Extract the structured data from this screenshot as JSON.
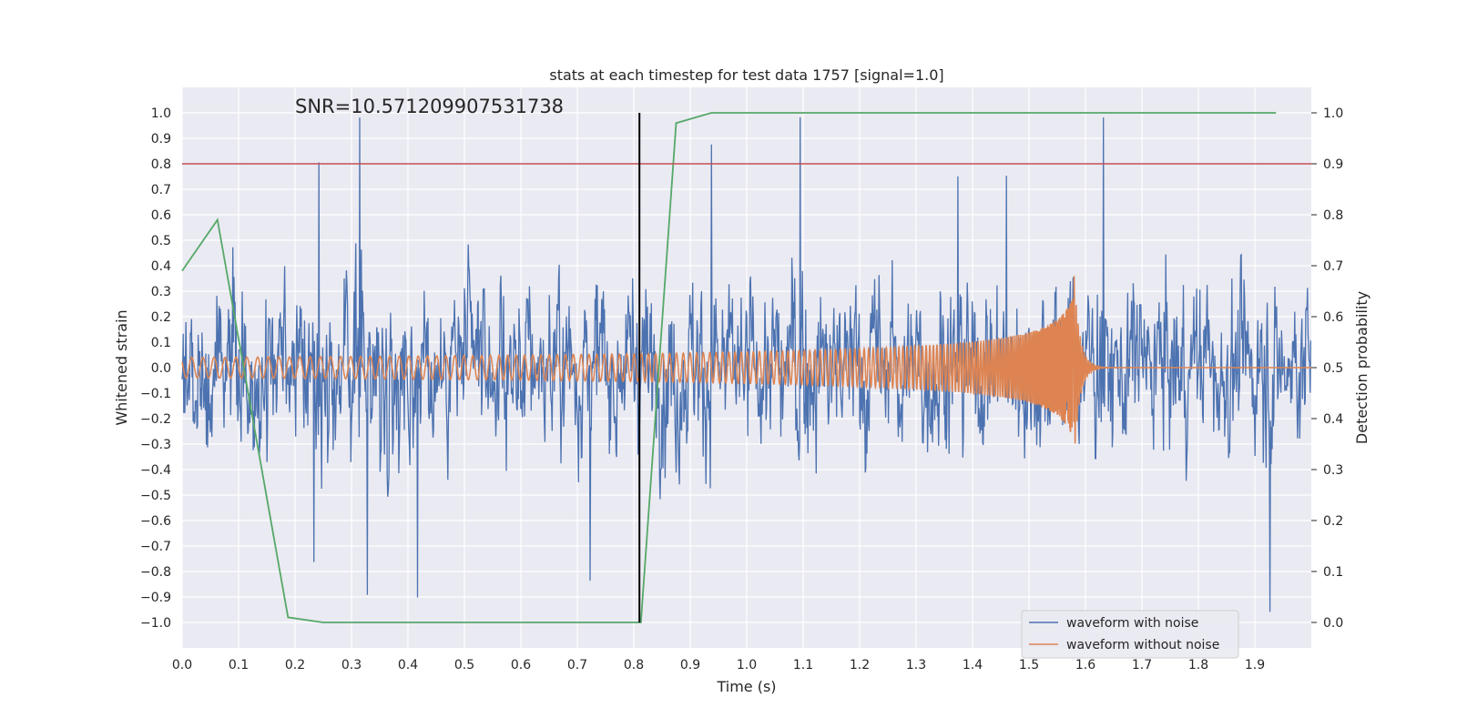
{
  "chart_data": {
    "type": "line",
    "title": "stats at each timestep for test data 1757 [signal=1.0]",
    "xlabel": "Time (s)",
    "ylabel": "Whitened strain",
    "ylabel_right": "Detection probability",
    "annotation": "SNR=10.571209907531738",
    "xlim": [
      0.0,
      2.0
    ],
    "ylim": [
      -1.1,
      1.1
    ],
    "ylim_right": [
      -0.05,
      1.05
    ],
    "x_ticks": [
      "0.0",
      "0.1",
      "0.2",
      "0.3",
      "0.4",
      "0.5",
      "0.6",
      "0.7",
      "0.8",
      "0.9",
      "1.0",
      "1.1",
      "1.2",
      "1.3",
      "1.4",
      "1.5",
      "1.6",
      "1.7",
      "1.8",
      "1.9"
    ],
    "y_ticks": [
      "1.0",
      "0.9",
      "0.8",
      "0.7",
      "0.6",
      "0.5",
      "0.4",
      "0.3",
      "0.2",
      "0.1",
      "0.0",
      "−0.1",
      "−0.2",
      "−0.3",
      "−0.4",
      "−0.5",
      "−0.6",
      "−0.7",
      "−0.8",
      "−0.9",
      "−1.0"
    ],
    "y_ticks_right": [
      "1.0",
      "0.9",
      "0.8",
      "0.7",
      "0.6",
      "0.5",
      "0.4",
      "0.3",
      "0.2",
      "0.1",
      "0.0"
    ],
    "threshold": 0.8,
    "event_time": 0.81,
    "legend": {
      "position": "lower-right",
      "entries": [
        {
          "label": "waveform with noise",
          "color": "#4c72b0"
        },
        {
          "label": "waveform without noise",
          "color": "#dd8452"
        }
      ]
    },
    "series": [
      {
        "name": "waveform with noise",
        "color": "#4c72b0",
        "axis": "left",
        "description": "dense whitened noise, amplitude roughly within ±0.6 with spikes to ±1.0",
        "num_samples": 2048,
        "duration": 2.0
      },
      {
        "name": "waveform without noise",
        "color": "#dd8452",
        "axis": "left",
        "description": "chirp signal, amplitude ~0.04 growing to ~0.36 at merger near t=1.58 s, then ringdown",
        "merger_time": 1.58
      },
      {
        "name": "detection probability",
        "color": "#55a868",
        "axis": "right",
        "x": [
          0.0,
          0.0625,
          0.1875,
          0.25,
          0.75,
          0.8125,
          0.875,
          0.9375,
          1.0,
          1.9375
        ],
        "values": [
          0.69,
          0.79,
          0.01,
          0.0,
          0.0,
          0.0,
          0.98,
          1.0,
          1.0,
          1.0
        ]
      }
    ]
  },
  "colors": {
    "axes_bg": "#eaeaf2",
    "grid": "#ffffff",
    "threshold": "#c44e52",
    "event_line": "#000000",
    "text": "#262626"
  }
}
